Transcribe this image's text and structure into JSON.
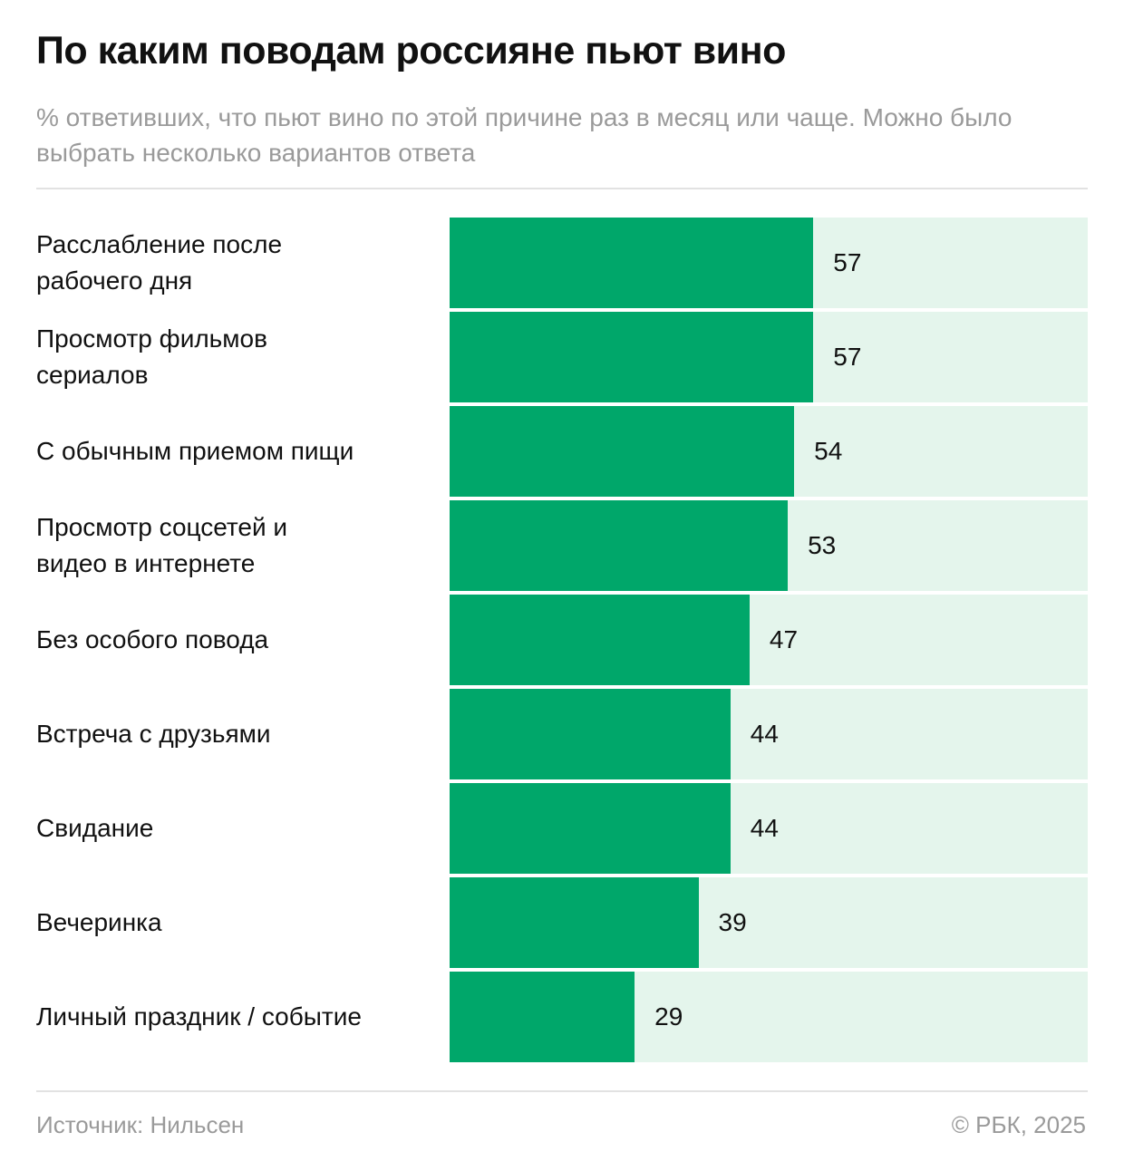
{
  "title": "По каким поводам россияне пьют вино",
  "subtitle": "% ответивших, что пьют вино по этой причине раз в месяц или чаще. Можно было выбрать несколько вариантов ответа",
  "footer": {
    "source": "Источник: Нильсен",
    "copyright": "© РБК, 2025"
  },
  "colors": {
    "bar": "#00a76a",
    "track": "#e4f5ec"
  },
  "chart_data": {
    "type": "bar",
    "orientation": "horizontal",
    "categories": [
      "Расслабление после рабочего дня",
      "Просмотр фильмов сериалов",
      "С обычным приемом пищи",
      "Просмотр соцсетей и видео в интернете",
      "Без особого повода",
      "Встреча с друзьями",
      "Свидание",
      "Вечеринка",
      "Личный праздник / событие"
    ],
    "values": [
      57,
      57,
      54,
      53,
      47,
      44,
      44,
      39,
      29
    ],
    "xlim": [
      0,
      100
    ],
    "grid": false,
    "data_labels": true
  }
}
